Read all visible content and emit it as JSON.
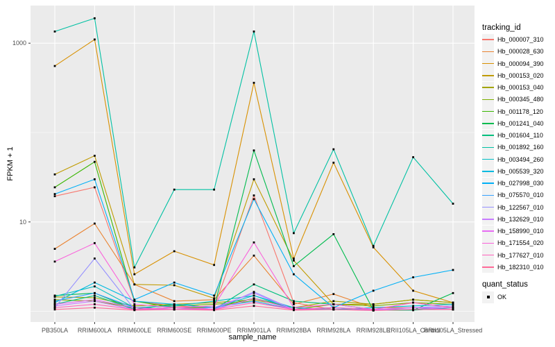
{
  "figure": {
    "x_axis_title": "sample_name",
    "y_axis_title": "FPKM + 1",
    "legend_title": "tracking_id",
    "legend2_title": "quant_status",
    "legend2_entries": [
      {
        "label": "OK"
      }
    ],
    "panel_bg": "#ebebeb",
    "grid_color": "#ffffff",
    "tick_color": "#333333",
    "tick_label_color": "#4d4d4d",
    "point_color": "#000000"
  },
  "chart_data": {
    "type": "line",
    "title": "",
    "xlabel": "sample_name",
    "ylabel": "FPKM + 1",
    "y_scale": "log10",
    "y_major_ticks": [
      10,
      1000
    ],
    "y_minor_gridlines": [
      1,
      100
    ],
    "ylim": [
      0.85,
      2200
    ],
    "grid": true,
    "legend_position": "right",
    "legend_title": "tracking_id",
    "point_marker": "filled-square",
    "quant_status_legend": {
      "title": "quant_status",
      "entries": [
        {
          "label": "OK",
          "marker": "filled-square",
          "color": "#000000"
        }
      ]
    },
    "x_categories": [
      "PB350LA",
      "RRIM600LA",
      "RRIM600LE",
      "RRIM600SE",
      "RRIM600PE",
      "RRIM901LA",
      "RRIM928BA",
      "RRIM928LA",
      "RRIM928LE",
      "RRII105LA_Control",
      "RRII105LA_Stressed"
    ],
    "series": [
      {
        "name": "Hb_000007_310",
        "color": "#F8766D",
        "values": [
          19.4,
          24.4,
          1.3,
          1.15,
          1.1,
          19.8,
          1.25,
          1.05,
          1.03,
          1.05,
          1.1
        ]
      },
      {
        "name": "Hb_000028_630",
        "color": "#EA8331",
        "values": [
          5.0,
          9.6,
          2.0,
          1.3,
          1.35,
          4.2,
          1.2,
          1.56,
          1.1,
          1.1,
          1.05
        ]
      },
      {
        "name": "Hb_000094_390",
        "color": "#D89000",
        "values": [
          555,
          1100,
          2.6,
          4.7,
          3.3,
          360,
          3.9,
          46,
          5.2,
          1.7,
          1.25
        ]
      },
      {
        "name": "Hb_000153_020",
        "color": "#C09B00",
        "values": [
          34,
          55,
          2.0,
          1.96,
          1.4,
          30,
          3.7,
          1.2,
          1.2,
          1.35,
          1.25
        ]
      },
      {
        "name": "Hb_000153_040",
        "color": "#A3A500",
        "values": [
          1.45,
          1.42,
          1.15,
          1.2,
          1.25,
          1.35,
          1.1,
          1.3,
          1.2,
          1.35,
          1.25
        ]
      },
      {
        "name": "Hb_000345_480",
        "color": "#7CAE00",
        "values": [
          1.35,
          1.3,
          1.1,
          1.15,
          1.2,
          1.3,
          1.05,
          1.2,
          1.15,
          1.25,
          1.2
        ]
      },
      {
        "name": "Hb_001178_120",
        "color": "#39B600",
        "values": [
          24.4,
          47,
          1.3,
          1.1,
          1.1,
          1.4,
          1.1,
          1.05,
          1.03,
          1.05,
          1.05
        ]
      },
      {
        "name": "Hb_001241_040",
        "color": "#00BB4E",
        "values": [
          1.5,
          1.6,
          1.05,
          1.2,
          1.1,
          63,
          3.2,
          7.3,
          1.03,
          1.03,
          1.6
        ]
      },
      {
        "name": "Hb_001604_110",
        "color": "#00BF7D",
        "values": [
          1.2,
          1.5,
          1.05,
          1.1,
          1.05,
          2.0,
          1.3,
          1.2,
          1.05,
          1.03,
          1.1
        ]
      },
      {
        "name": "Hb_001892_160",
        "color": "#00C1A3",
        "values": [
          1350,
          1900,
          3.1,
          23,
          23,
          1350,
          7.5,
          65,
          5.4,
          53,
          16
        ]
      },
      {
        "name": "Hb_003494_260",
        "color": "#00BFC4",
        "values": [
          1.47,
          1.9,
          1.1,
          1.15,
          1.3,
          1.5,
          1.05,
          1.1,
          1.03,
          1.05,
          1.1
        ]
      },
      {
        "name": "Hb_005539_320",
        "color": "#00BAE0",
        "values": [
          1.25,
          2.1,
          1.3,
          1.2,
          1.1,
          1.5,
          1.1,
          1.05,
          1.1,
          1.15,
          1.2
        ]
      },
      {
        "name": "Hb_027998_030",
        "color": "#00B0F6",
        "values": [
          20.5,
          30,
          1.35,
          2.1,
          1.5,
          18,
          2.6,
          1.1,
          1.7,
          2.4,
          2.9
        ]
      },
      {
        "name": "Hb_075570_010",
        "color": "#35A2FF",
        "values": [
          1.3,
          1.6,
          1.1,
          1.05,
          1.1,
          1.3,
          1.05,
          1.1,
          1.03,
          1.05,
          1.05
        ]
      },
      {
        "name": "Hb_122567_010",
        "color": "#9590FF",
        "values": [
          1.1,
          3.9,
          1.05,
          1.1,
          1.05,
          1.65,
          1.05,
          1.1,
          1.05,
          1.1,
          1.15
        ]
      },
      {
        "name": "Hb_132629_010",
        "color": "#C77CFF",
        "values": [
          1.15,
          1.3,
          1.05,
          1.05,
          1.1,
          1.6,
          1.05,
          1.1,
          1.05,
          1.1,
          1.1
        ]
      },
      {
        "name": "Hb_158990_010",
        "color": "#E76BF3",
        "values": [
          1.2,
          1.35,
          1.1,
          1.05,
          1.05,
          1.4,
          1.05,
          1.05,
          1.03,
          1.1,
          1.05
        ]
      },
      {
        "name": "Hb_171554_020",
        "color": "#FA62DB",
        "values": [
          3.6,
          5.8,
          1.2,
          1.1,
          1.15,
          5.9,
          1.1,
          1.2,
          1.05,
          1.25,
          1.1
        ]
      },
      {
        "name": "Hb_177627_010",
        "color": "#FF62BC",
        "values": [
          1.1,
          1.2,
          1.05,
          1.1,
          1.05,
          1.25,
          1.05,
          1.1,
          1.05,
          1.25,
          1.1
        ]
      },
      {
        "name": "Hb_182310_010",
        "color": "#FF6A98",
        "values": [
          1.05,
          1.1,
          1.03,
          1.05,
          1.03,
          1.15,
          1.03,
          1.05,
          1.02,
          1.05,
          1.05
        ]
      }
    ]
  }
}
